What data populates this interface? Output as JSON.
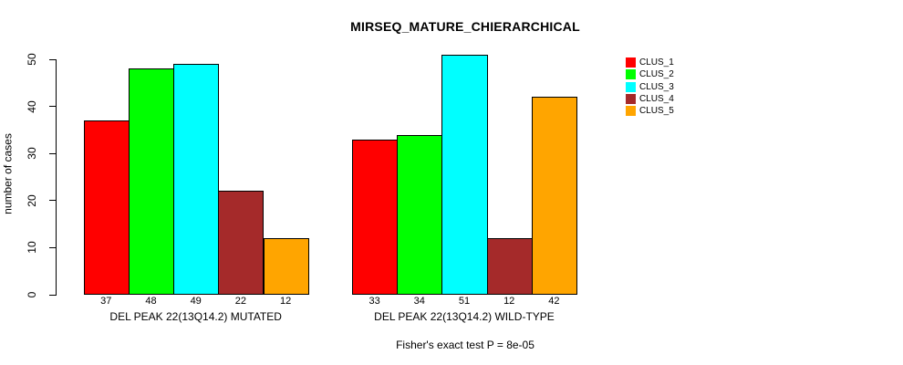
{
  "chart_data": {
    "type": "bar",
    "title": "MIRSEQ_MATURE_CHIERARCHICAL",
    "ylabel": "number of cases",
    "xlabel": "",
    "ylim": [
      0,
      50
    ],
    "yticks": [
      0,
      10,
      20,
      30,
      40,
      50
    ],
    "grid": false,
    "legend_position": "right",
    "bar_value_labels_shown": true,
    "categories": [
      "DEL PEAK 22(13Q14.2) MUTATED",
      "DEL PEAK 22(13Q14.2) WILD-TYPE"
    ],
    "series": [
      {
        "name": "CLUS_1",
        "color": "#ff0000",
        "values": [
          37,
          33
        ]
      },
      {
        "name": "CLUS_2",
        "color": "#00ff00",
        "values": [
          48,
          34
        ]
      },
      {
        "name": "CLUS_3",
        "color": "#00ffff",
        "values": [
          49,
          51
        ]
      },
      {
        "name": "CLUS_4",
        "color": "#a52a2a",
        "values": [
          22,
          12
        ]
      },
      {
        "name": "CLUS_5",
        "color": "#ffa500",
        "values": [
          12,
          42
        ]
      }
    ],
    "caption": "Fisher's exact test P = 8e-05",
    "background_color": "#ffffff",
    "text_color": "#000000"
  }
}
